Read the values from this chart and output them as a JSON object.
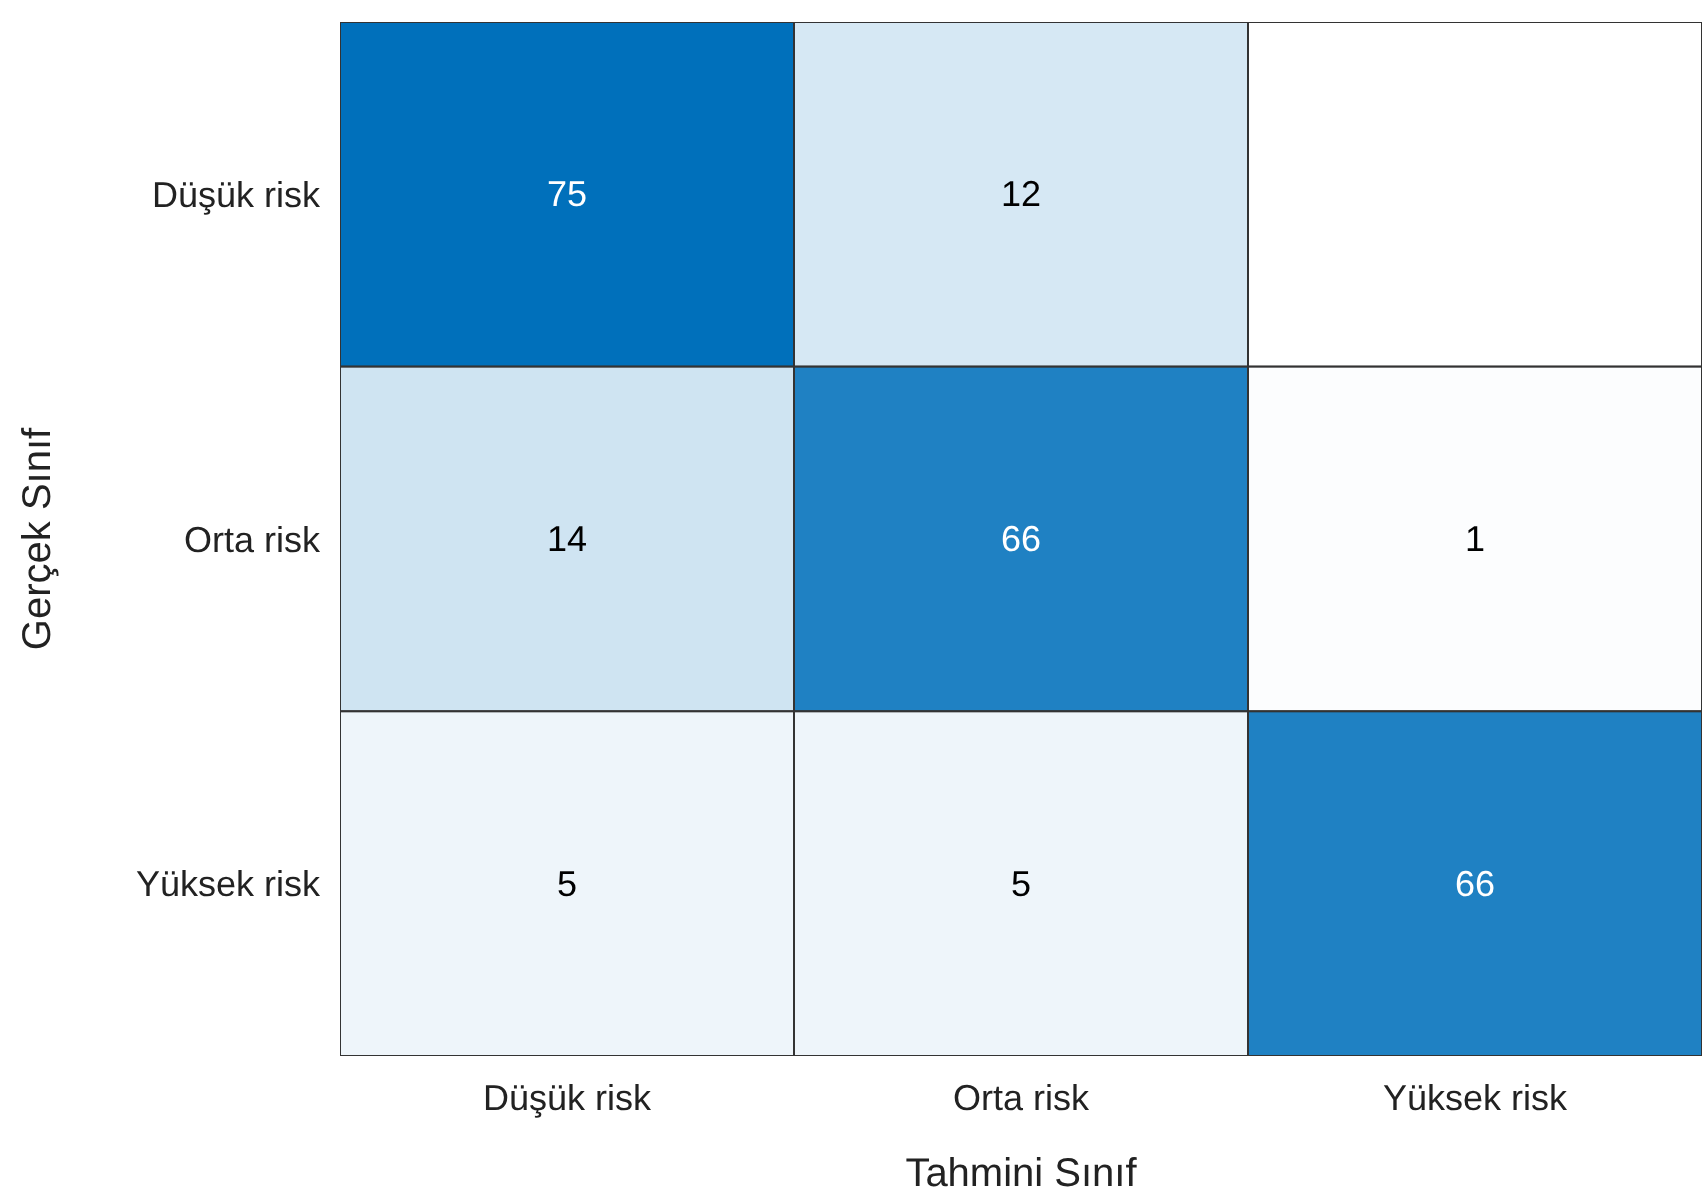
{
  "chart_data": {
    "type": "heatmap",
    "data_labels": true,
    "xlabel": "Tahmini Sınıf",
    "ylabel": "Gerçek Sınıf",
    "categories": [
      "Düşük risk",
      "Orta risk",
      "Yüksek risk"
    ],
    "y_categories": [
      "Düşük risk",
      "Orta risk",
      "Yüksek risk"
    ],
    "cells": [
      [
        75,
        12,
        null
      ],
      [
        14,
        66,
        1
      ],
      [
        5,
        5,
        66
      ]
    ]
  }
}
